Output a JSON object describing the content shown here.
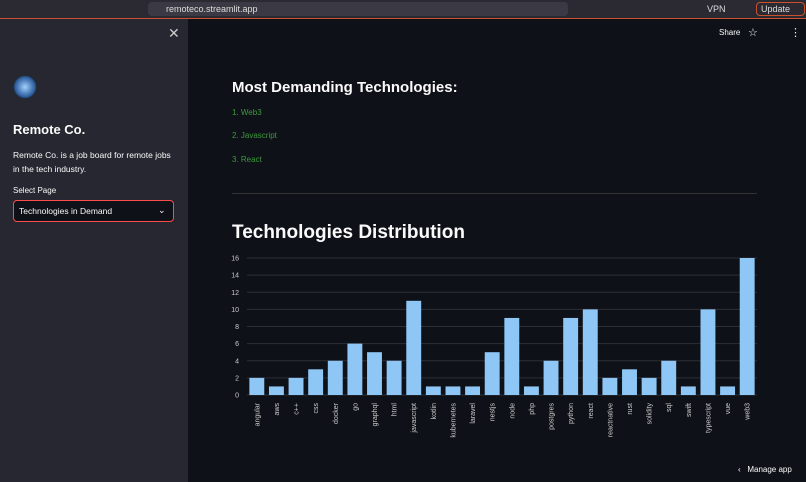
{
  "browser": {
    "url": "remoteco.streamlit.app",
    "vpn": "VPN",
    "update": "Update"
  },
  "sidebar": {
    "title": "Remote Co.",
    "description": "Remote Co. is a job board for remote jobs in the tech industry.",
    "select_label": "Select Page",
    "select_value": "Technologies in Demand"
  },
  "toolbar": {
    "share": "Share"
  },
  "main": {
    "heading": "Most Demanding Technologies:",
    "list": [
      "1. Web3",
      "2. Javascript",
      "3. React"
    ],
    "footer": "Manage app"
  },
  "chart_data": {
    "type": "bar",
    "title": "Technologies Distribution",
    "categories": [
      "angular",
      "aws",
      "c++",
      "css",
      "docker",
      "go",
      "graphql",
      "html",
      "javascript",
      "kotlin",
      "kubernetes",
      "laravel",
      "nestjs",
      "node",
      "php",
      "postgres",
      "python",
      "react",
      "reactnative",
      "rust",
      "solidity",
      "sql",
      "swift",
      "typescript",
      "vue",
      "web3"
    ],
    "values": [
      2,
      1,
      2,
      3,
      4,
      6,
      5,
      4,
      11,
      1,
      1,
      1,
      5,
      9,
      1,
      4,
      9,
      10,
      2,
      3,
      2,
      4,
      1,
      10,
      1,
      16
    ],
    "color": "#8ec6f5",
    "ylim": [
      0,
      16
    ],
    "yticks": [
      0,
      2,
      4,
      6,
      8,
      10,
      12,
      14,
      16
    ],
    "grid": true
  }
}
